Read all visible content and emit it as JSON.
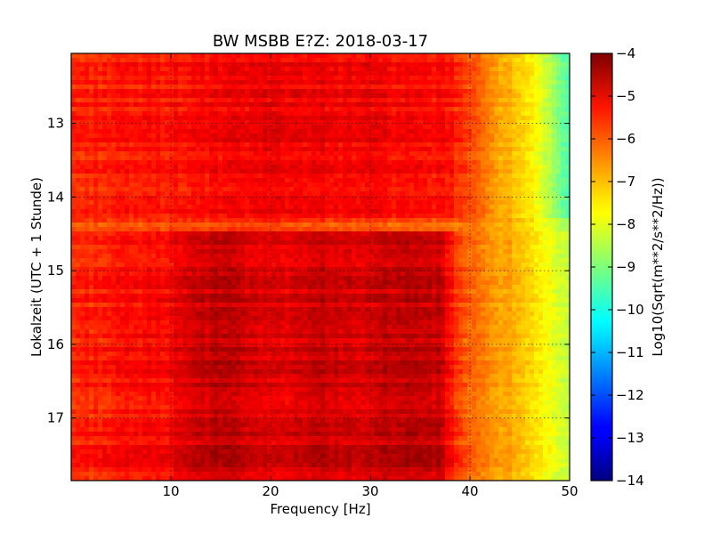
{
  "chart_data": {
    "type": "heatmap",
    "title": "BW MSBB E?Z: 2018-03-17",
    "xlabel": "Frequency [Hz]",
    "ylabel": "Lokalzeit (UTC + 1 Stunde)",
    "xlim": [
      0,
      50
    ],
    "ylim": [
      17.85,
      12.05
    ],
    "x_ticks": [
      10,
      20,
      30,
      40,
      50
    ],
    "y_ticks": [
      13,
      14,
      15,
      16,
      17
    ],
    "y_inverted": true,
    "grid": true,
    "colormap": "jet",
    "colorbar": {
      "label": "Log10(Sqrt(m**2/s**2/Hz))",
      "range": [
        -14,
        -4
      ],
      "ticks": [
        -4,
        -5,
        -6,
        -7,
        -8,
        -9,
        -10,
        -11,
        -12,
        -13,
        -14
      ]
    },
    "description_series": [
      {
        "time_range": [
          12.05,
          14.3
        ],
        "freq_profile": [
          [
            0,
            -5.6
          ],
          [
            10,
            -5.4
          ],
          [
            20,
            -5.1
          ],
          [
            30,
            -5.2
          ],
          [
            38,
            -5.4
          ],
          [
            40,
            -6.0
          ],
          [
            43,
            -6.8
          ],
          [
            46,
            -7.6
          ],
          [
            48,
            -8.5
          ],
          [
            50,
            -9.6
          ]
        ]
      },
      {
        "time_range": [
          14.3,
          14.45
        ],
        "freq_profile": [
          [
            0,
            -6.0
          ],
          [
            20,
            -5.8
          ],
          [
            40,
            -6.3
          ],
          [
            45,
            -7.2
          ],
          [
            50,
            -8.8
          ]
        ]
      },
      {
        "time_range": [
          14.45,
          17.85
        ],
        "freq_profile": [
          [
            0,
            -5.6
          ],
          [
            10,
            -5.2
          ],
          [
            11,
            -4.9
          ],
          [
            15,
            -4.6
          ],
          [
            20,
            -5.0
          ],
          [
            25,
            -4.7
          ],
          [
            30,
            -4.9
          ],
          [
            32,
            -4.6
          ],
          [
            37,
            -4.7
          ],
          [
            38,
            -5.4
          ],
          [
            40,
            -6.3
          ],
          [
            44,
            -6.9
          ],
          [
            46,
            -7.4
          ],
          [
            48,
            -7.9
          ],
          [
            50,
            -8.4
          ]
        ]
      }
    ]
  }
}
